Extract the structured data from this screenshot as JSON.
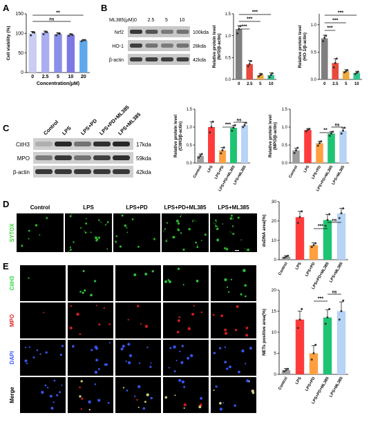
{
  "panels": {
    "A": "A",
    "B": "B",
    "C": "C",
    "D": "D",
    "E": "E"
  },
  "labels": {
    "ml385_header": "ML385(μM)",
    "ml385_doses": [
      "0",
      "2.5",
      "5",
      "10"
    ],
    "blot_b": {
      "rows": [
        "Nrf2",
        "HO-1",
        "β-actin"
      ],
      "kda": [
        "100kda",
        "28kda",
        "42kda"
      ]
    },
    "blot_c": {
      "groups": [
        "Control",
        "LPS",
        "LPS+PD",
        "LPS+PD+ML385",
        "LPS+ML385"
      ],
      "rows": [
        "CitH3",
        "MPO",
        "β-actin"
      ],
      "kda": [
        "17kda",
        "59kda",
        "42kda"
      ]
    },
    "d_groups": [
      "Control",
      "LPS",
      "LPS+PD",
      "LPS+PD+ML385",
      "LPS+ML385"
    ],
    "d_stain": "SYTOX",
    "e_rows": [
      "CitH3",
      "MPO",
      "DAPI",
      "Merge"
    ]
  },
  "colors": {
    "five_groups": [
      "#9e9e9e",
      "#ff3b3b",
      "#ffa040",
      "#1fc472",
      "#b7d3f5"
    ],
    "b_bars": [
      "#7f7f7f",
      "#e84a3b",
      "#f0a83a",
      "#2dc58e"
    ],
    "a_bars": [
      "#c9cdf2",
      "#a9aef0",
      "#8a8fe8",
      "#7c79e6",
      "#5ea8ec"
    ],
    "sytox": "#35d335",
    "cith3": "#2dd645",
    "mpo": "#e02020",
    "dapi": "#3b5bff"
  },
  "chart_data": [
    {
      "id": "A",
      "type": "bar",
      "categories": [
        "0",
        "2.5",
        "5",
        "10",
        "20"
      ],
      "values": [
        100,
        102,
        98,
        96,
        82
      ],
      "errors": [
        5,
        4,
        4,
        3,
        2
      ],
      "points": [
        [
          95,
          103,
          102
        ],
        [
          98,
          104,
          103
        ],
        [
          95,
          100,
          99
        ],
        [
          94,
          98,
          96
        ],
        [
          80,
          83,
          83
        ]
      ],
      "xlabel": "Concentration(μM)",
      "ylabel": "Cell viability (%)",
      "ylim": [
        0,
        150
      ],
      "yticks": [
        "0",
        "50",
        "100",
        "150"
      ],
      "annotations": [
        {
          "from": 0,
          "to": 3,
          "text": "ns"
        },
        {
          "from": 0,
          "to": 4,
          "text": "**"
        }
      ]
    },
    {
      "id": "B1",
      "type": "bar",
      "categories": [
        "0",
        "2.5",
        "5",
        "10"
      ],
      "values": [
        1.15,
        0.35,
        0.1,
        0.1
      ],
      "errors": [
        0.08,
        0.08,
        0.04,
        0.05
      ],
      "points": [
        [
          1.05,
          1.15,
          1.22
        ],
        [
          0.3,
          0.35,
          0.42
        ],
        [
          0.07,
          0.1,
          0.12
        ],
        [
          0.05,
          0.1,
          0.14
        ]
      ],
      "ylabel": "Relative protein level (Nrf2/β-actin)",
      "ylim": [
        0,
        1.5
      ],
      "yticks": [
        "0.0",
        "0.5",
        "1.0",
        "1.5"
      ],
      "annotations": [
        {
          "from": 0,
          "to": 1,
          "text": "***"
        },
        {
          "from": 0,
          "to": 2,
          "text": "***"
        },
        {
          "from": 0,
          "to": 3,
          "text": "***"
        }
      ]
    },
    {
      "id": "B2",
      "type": "bar",
      "categories": [
        "0",
        "2.5",
        "5",
        "10"
      ],
      "values": [
        0.75,
        0.3,
        0.15,
        0.12
      ],
      "errors": [
        0.06,
        0.08,
        0.03,
        0.03
      ],
      "points": [
        [
          0.7,
          0.76,
          0.8
        ],
        [
          0.22,
          0.3,
          0.38
        ],
        [
          0.13,
          0.15,
          0.17
        ],
        [
          0.1,
          0.12,
          0.14
        ]
      ],
      "ylabel": "Relative protein level (HO-1/β-actin)",
      "ylim": [
        0,
        1.2
      ],
      "yticks": [
        "0.0",
        "0.5",
        "1.0"
      ],
      "annotations": [
        {
          "from": 0,
          "to": 1,
          "text": "***"
        },
        {
          "from": 0,
          "to": 2,
          "text": "***"
        },
        {
          "from": 0,
          "to": 3,
          "text": "***"
        }
      ]
    },
    {
      "id": "C1",
      "type": "bar",
      "categories": [
        "Control",
        "LPS",
        "LPS+PD",
        "LPS+PD+ML385",
        "LPS+ML385"
      ],
      "values": [
        0.2,
        1.0,
        0.35,
        0.98,
        1.05
      ],
      "errors": [
        0.05,
        0.15,
        0.08,
        0.07,
        0.08
      ],
      "points": [
        [
          0.15,
          0.2,
          0.25
        ],
        [
          0.85,
          1.0,
          1.15
        ],
        [
          0.27,
          0.35,
          0.43
        ],
        [
          0.9,
          0.98,
          1.05
        ],
        [
          1.0,
          1.05,
          1.12
        ]
      ],
      "ylabel": "Relative protein level (CitH3/β-actin)",
      "ylim": [
        0,
        1.5
      ],
      "yticks": [
        "0.0",
        "0.5",
        "1.0",
        "1.5"
      ],
      "annotations": [
        {
          "from": 2,
          "to": 3,
          "text": "***"
        },
        {
          "from": 3,
          "to": 4,
          "text": "ns"
        }
      ]
    },
    {
      "id": "C2",
      "type": "bar",
      "categories": [
        "Control",
        "LPS",
        "LPS+PD",
        "LPS+PD+ML385",
        "LPS+ML385"
      ],
      "values": [
        0.35,
        0.92,
        0.55,
        0.82,
        0.9
      ],
      "errors": [
        0.06,
        0.04,
        0.06,
        0.06,
        0.08
      ],
      "points": [
        [
          0.28,
          0.35,
          0.42
        ],
        [
          0.88,
          0.92,
          0.95
        ],
        [
          0.48,
          0.55,
          0.6
        ],
        [
          0.76,
          0.82,
          0.87
        ],
        [
          0.82,
          0.9,
          0.98
        ]
      ],
      "ylabel": "Relative protein level (MPO/β-actin)",
      "ylim": [
        0,
        1.5
      ],
      "yticks": [
        "0.0",
        "0.5",
        "1.0",
        "1.5"
      ],
      "annotations": [
        {
          "from": 2,
          "to": 3,
          "text": "**"
        },
        {
          "from": 3,
          "to": 4,
          "text": "ns"
        }
      ]
    },
    {
      "id": "D",
      "type": "bar",
      "categories": [
        "Control",
        "LPS",
        "LPS+PD",
        "LPS+PD+ML385",
        "LPS+ML385"
      ],
      "values": [
        1.5,
        22,
        7.5,
        20.5,
        24
      ],
      "errors": [
        0.6,
        3,
        1.2,
        3,
        2.5
      ],
      "points": [
        [
          1,
          1.5,
          2
        ],
        [
          19,
          22,
          25
        ],
        [
          6.5,
          7.5,
          8.5
        ],
        [
          17.5,
          20.5,
          23.5
        ],
        [
          21.5,
          24,
          26.5
        ]
      ],
      "ylabel": "dsDNA area(%)",
      "ylim": [
        0,
        30
      ],
      "yticks": [
        "0",
        "10",
        "20",
        "30"
      ],
      "annotations": [
        {
          "from": 2,
          "to": 3,
          "text": "***"
        },
        {
          "from": 3,
          "to": 4,
          "text": "ns"
        }
      ]
    },
    {
      "id": "E",
      "type": "bar",
      "categories": [
        "Control",
        "LPS",
        "LPS+PD",
        "LPS+PD+ML385",
        "LPS+ML385"
      ],
      "values": [
        1,
        13,
        5,
        13.5,
        15
      ],
      "errors": [
        0.4,
        2,
        1.8,
        1.8,
        2.2
      ],
      "points": [
        [
          0.7,
          1,
          1.3
        ],
        [
          11,
          13,
          15.5
        ],
        [
          3.5,
          5,
          7
        ],
        [
          12,
          13.5,
          15.5
        ],
        [
          13,
          15,
          17.5
        ]
      ],
      "ylabel": "NETs positive area(%)",
      "ylim": [
        0,
        20
      ],
      "yticks": [
        "0",
        "5",
        "10",
        "15",
        "20"
      ],
      "annotations": [
        {
          "from": 2,
          "to": 3,
          "text": "***"
        },
        {
          "from": 3,
          "to": 4,
          "text": "ns"
        }
      ]
    }
  ]
}
